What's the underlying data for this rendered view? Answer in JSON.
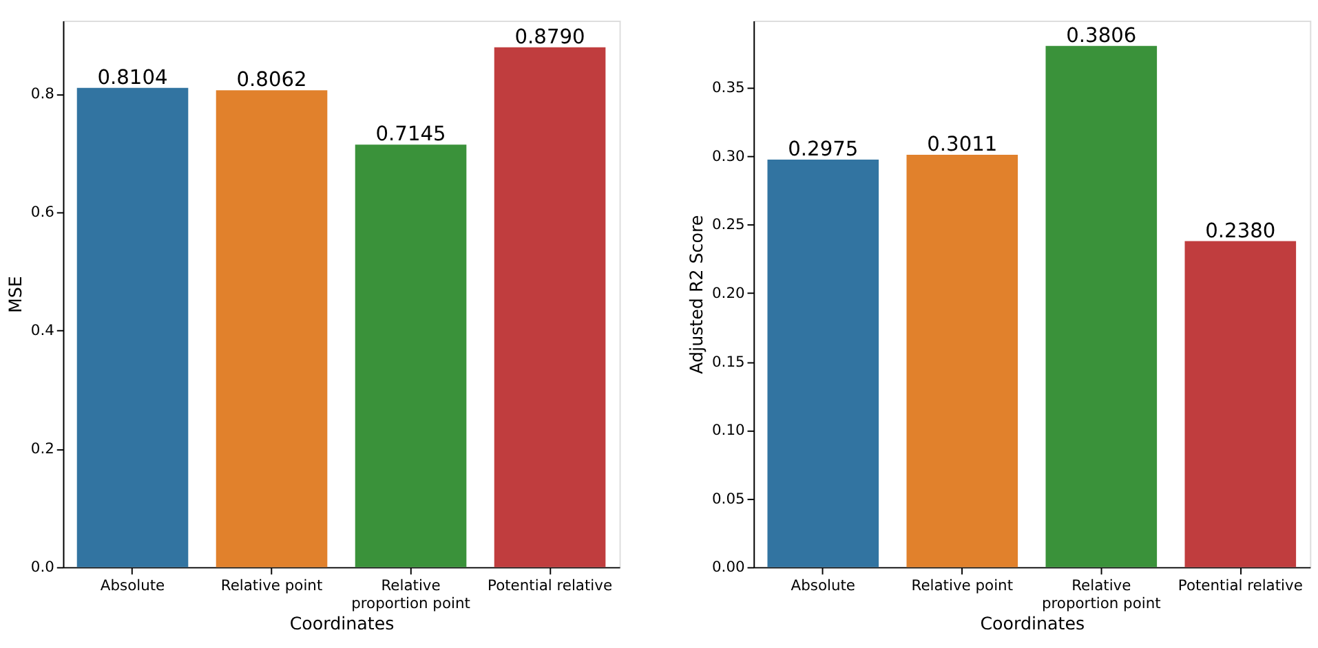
{
  "chart_data": [
    {
      "type": "bar",
      "xlabel": "Coordinates",
      "ylabel": "MSE",
      "categories": [
        "Absolute",
        "Relative point",
        "Relative proportion point",
        "Potential relative"
      ],
      "values": [
        0.8104,
        0.8062,
        0.7145,
        0.879
      ],
      "value_labels": [
        "0.8104",
        "0.8062",
        "0.7145",
        "0.8790"
      ],
      "colors": [
        "#3274a1",
        "#e1812c",
        "#3a923a",
        "#c03d3e"
      ],
      "ylim": [
        0,
        0.924
      ],
      "yticks": [
        {
          "value": 0,
          "label": "0.0"
        },
        {
          "value": 0.2,
          "label": "0.2"
        },
        {
          "value": 0.4,
          "label": "0.4"
        },
        {
          "value": 0.6,
          "label": "0.6"
        },
        {
          "value": 0.8,
          "label": "0.8"
        }
      ],
      "grid": false,
      "legend": false
    },
    {
      "type": "bar",
      "xlabel": "Coordinates",
      "ylabel": "Adjusted R2 Score",
      "categories": [
        "Absolute",
        "Relative point",
        "Relative proportion point",
        "Potential relative"
      ],
      "values": [
        0.2975,
        0.3011,
        0.3806,
        0.238
      ],
      "value_labels": [
        "0.2975",
        "0.3011",
        "0.3806",
        "0.2380"
      ],
      "colors": [
        "#3274a1",
        "#e1812c",
        "#3a923a",
        "#c03d3e"
      ],
      "ylim": [
        0,
        0.399
      ],
      "yticks": [
        {
          "value": 0,
          "label": "0.00"
        },
        {
          "value": 0.05,
          "label": "0.05"
        },
        {
          "value": 0.1,
          "label": "0.10"
        },
        {
          "value": 0.15,
          "label": "0.15"
        },
        {
          "value": 0.2,
          "label": "0.20"
        },
        {
          "value": 0.25,
          "label": "0.25"
        },
        {
          "value": 0.3,
          "label": "0.30"
        },
        {
          "value": 0.35,
          "label": "0.35"
        }
      ],
      "grid": false,
      "legend": false
    }
  ]
}
